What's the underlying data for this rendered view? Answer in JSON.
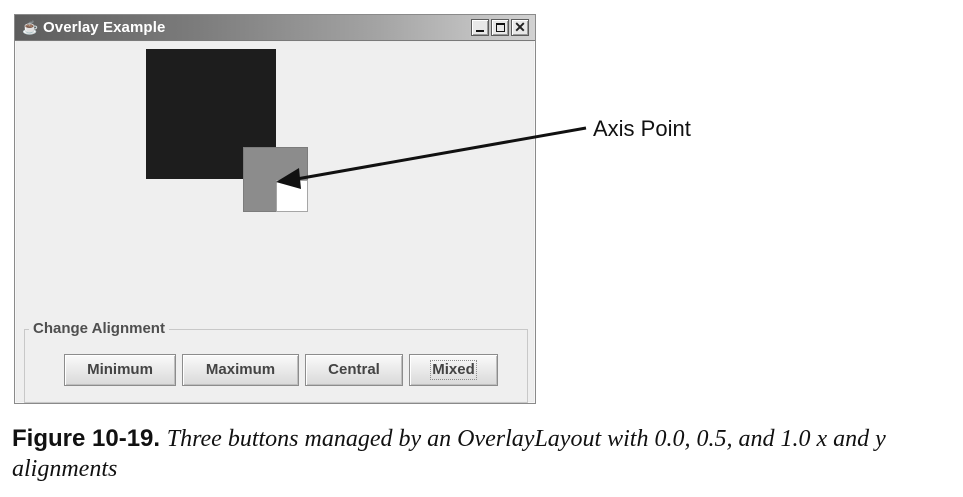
{
  "window": {
    "title": "Overlay Example",
    "icon": "java-icon",
    "controls": {
      "minimize": "minimize-icon",
      "maximize": "maximize-icon",
      "close": "close-icon"
    }
  },
  "panels": {
    "large_color": "#1d1d1d",
    "medium_color": "#8c8c8c",
    "small_color": "#ffffff"
  },
  "group": {
    "title": "Change Alignment"
  },
  "buttons": [
    {
      "label": "Minimum"
    },
    {
      "label": "Maximum"
    },
    {
      "label": "Central"
    },
    {
      "label": "Mixed"
    }
  ],
  "annotation": {
    "label": "Axis Point"
  },
  "caption": {
    "label": "Figure 10-19.",
    "text": "Three buttons managed by an OverlayLayout with 0.0, 0.5, and 1.0 x and y alignments"
  }
}
